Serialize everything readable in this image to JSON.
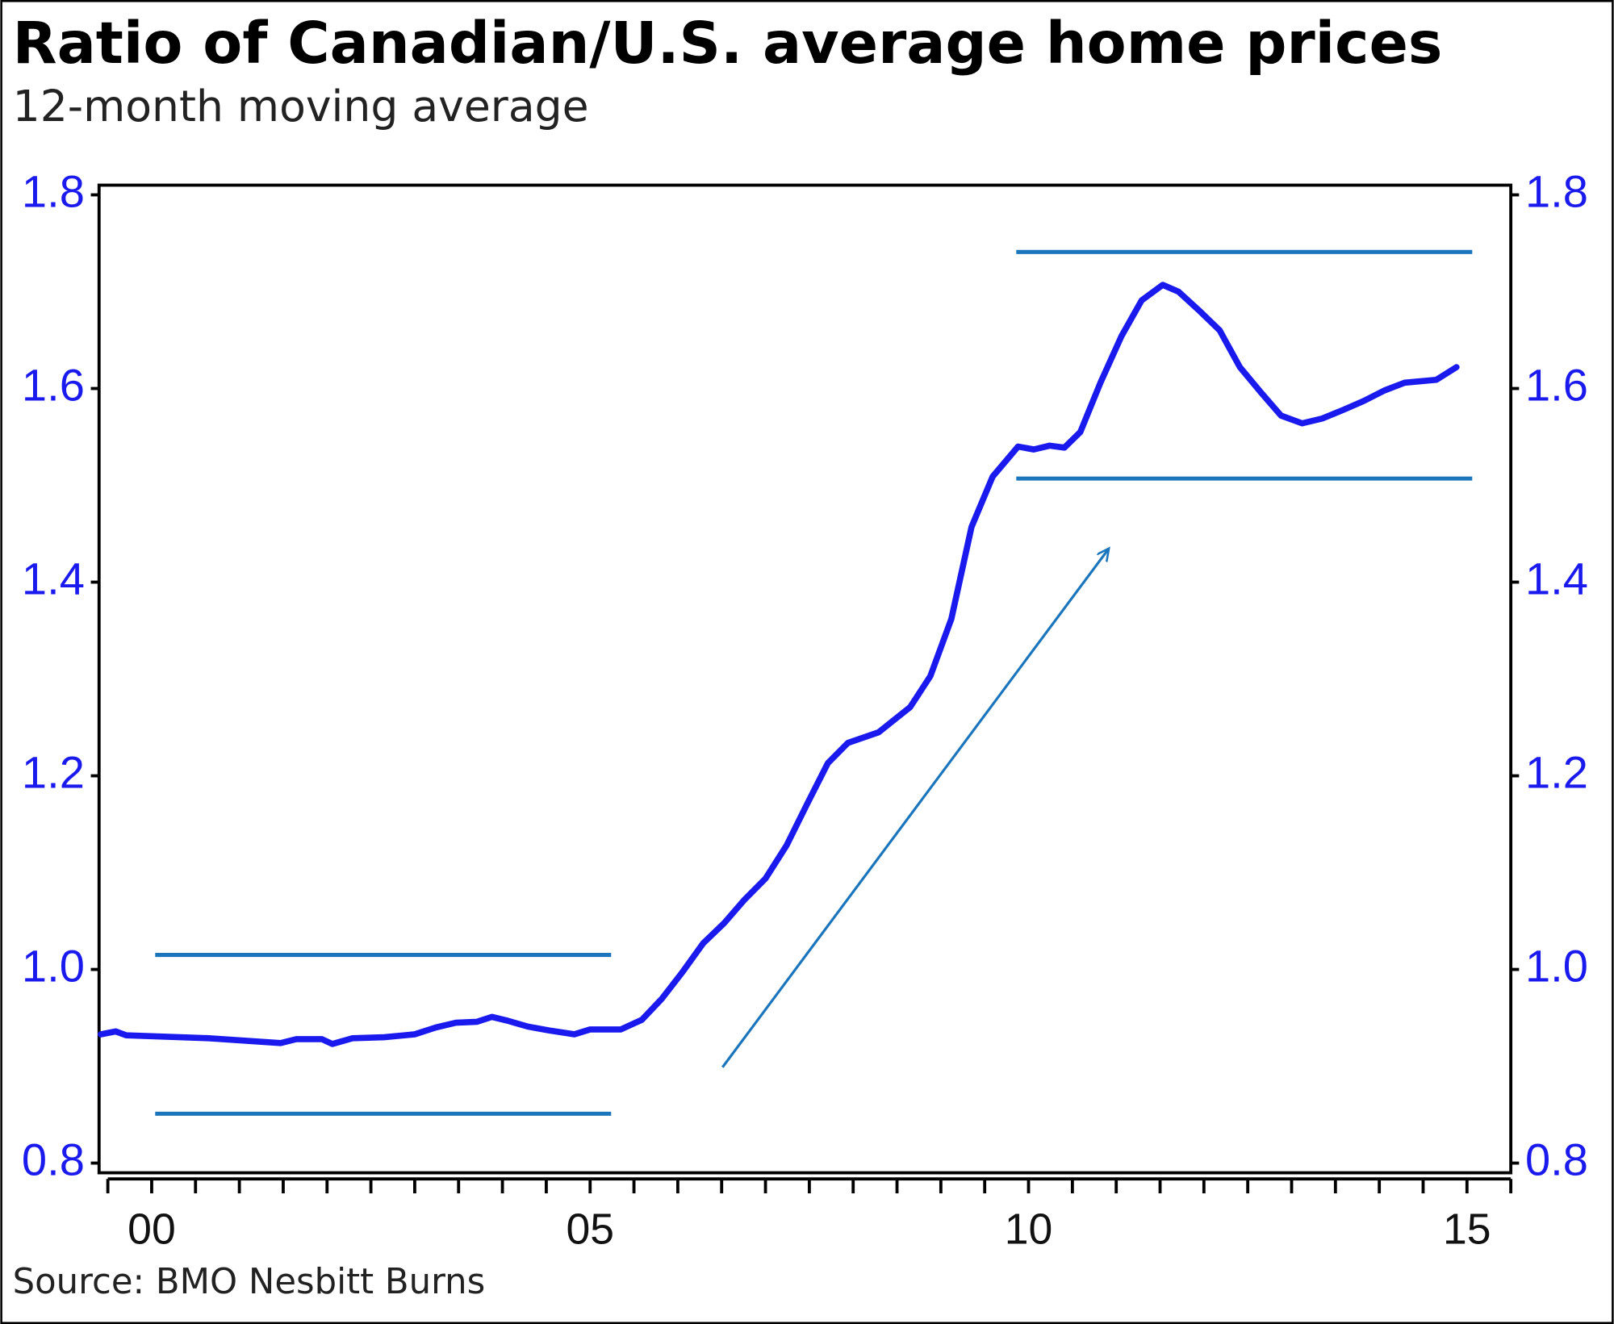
{
  "chart_data": {
    "type": "line",
    "title": "Ratio of Canadian/U.S. average home prices",
    "subtitle": "12-month moving average",
    "source": "Source: BMO Nesbitt Burns",
    "x": [
      1999.42,
      1999.59,
      1999.71,
      2000.65,
      2001.47,
      2001.65,
      2001.94,
      2002.06,
      2002.29,
      2002.65,
      2003.0,
      2003.24,
      2003.47,
      2003.71,
      2003.88,
      2004.06,
      2004.29,
      2004.53,
      2004.82,
      2005.0,
      2005.35,
      2005.59,
      2005.82,
      2006.06,
      2006.29,
      2006.53,
      2006.76,
      2007.0,
      2007.24,
      2007.47,
      2007.71,
      2007.94,
      2008.29,
      2008.65,
      2008.88,
      2009.12,
      2009.35,
      2009.59,
      2009.88,
      2010.06,
      2010.24,
      2010.41,
      2010.59,
      2010.82,
      2011.06,
      2011.29,
      2011.53,
      2011.71,
      2011.94,
      2012.18,
      2012.41,
      2012.65,
      2012.88,
      2013.12,
      2013.35,
      2013.59,
      2013.82,
      2014.06,
      2014.29,
      2014.65,
      2014.88
    ],
    "series": [
      {
        "color": "#1a1aee",
        "values": [
          0.933,
          0.936,
          0.932,
          0.929,
          0.924,
          0.928,
          0.928,
          0.923,
          0.929,
          0.93,
          0.933,
          0.94,
          0.945,
          0.946,
          0.951,
          0.947,
          0.941,
          0.937,
          0.933,
          0.938,
          0.938,
          0.948,
          0.97,
          0.998,
          1.027,
          1.048,
          1.072,
          1.094,
          1.128,
          1.17,
          1.213,
          1.234,
          1.245,
          1.271,
          1.303,
          1.362,
          1.457,
          1.509,
          1.54,
          1.537,
          1.541,
          1.539,
          1.555,
          1.606,
          1.654,
          1.691,
          1.707,
          1.7,
          1.681,
          1.66,
          1.622,
          1.596,
          1.572,
          1.564,
          1.569,
          1.578,
          1.587,
          1.598,
          1.606,
          1.609,
          1.622
        ]
      }
    ],
    "xlim": [
      1999.4,
      2015.5
    ],
    "ylim": [
      0.79,
      1.81
    ],
    "xticks": [
      {
        "value": 1999.5,
        "label": null
      },
      {
        "value": 2000,
        "label": "00"
      },
      {
        "value": 2000.5,
        "label": null
      },
      {
        "value": 2001,
        "label": null
      },
      {
        "value": 2001.5,
        "label": null
      },
      {
        "value": 2002,
        "label": null
      },
      {
        "value": 2002.5,
        "label": null
      },
      {
        "value": 2003,
        "label": null
      },
      {
        "value": 2003.5,
        "label": null
      },
      {
        "value": 2004,
        "label": null
      },
      {
        "value": 2004.5,
        "label": null
      },
      {
        "value": 2005,
        "label": "05"
      },
      {
        "value": 2005.5,
        "label": null
      },
      {
        "value": 2006,
        "label": null
      },
      {
        "value": 2006.5,
        "label": null
      },
      {
        "value": 2007,
        "label": null
      },
      {
        "value": 2007.5,
        "label": null
      },
      {
        "value": 2008,
        "label": null
      },
      {
        "value": 2008.5,
        "label": null
      },
      {
        "value": 2009,
        "label": null
      },
      {
        "value": 2009.5,
        "label": null
      },
      {
        "value": 2010,
        "label": "10"
      },
      {
        "value": 2010.5,
        "label": null
      },
      {
        "value": 2011,
        "label": null
      },
      {
        "value": 2011.5,
        "label": null
      },
      {
        "value": 2012,
        "label": null
      },
      {
        "value": 2012.5,
        "label": null
      },
      {
        "value": 2013,
        "label": null
      },
      {
        "value": 2013.5,
        "label": null
      },
      {
        "value": 2014,
        "label": null
      },
      {
        "value": 2014.5,
        "label": null
      },
      {
        "value": 2015,
        "label": "15"
      },
      {
        "value": 2015.5,
        "label": null
      }
    ],
    "yticks": [
      0.8,
      {
        "value": 1,
        "label": "1.0"
      },
      1.2,
      1.4,
      1.6,
      1.8
    ],
    "reference_lines": [
      {
        "y": 1.015,
        "x": [
          2000.04,
          2005.24
        ],
        "color": "#1b75bc"
      },
      {
        "y": 0.851,
        "x": [
          2000.04,
          2005.24
        ],
        "color": "#1b75bc"
      },
      {
        "y": 1.741,
        "x": [
          2009.86,
          2015.06
        ],
        "color": "#1b75bc"
      },
      {
        "y": 1.507,
        "x": [
          2009.86,
          2015.06
        ],
        "color": "#1b75bc"
      }
    ],
    "arrow": {
      "x": [
        2006.51,
        2010.91
      ],
      "y": [
        0.899,
        1.434
      ],
      "color": "#1b75bc"
    }
  }
}
